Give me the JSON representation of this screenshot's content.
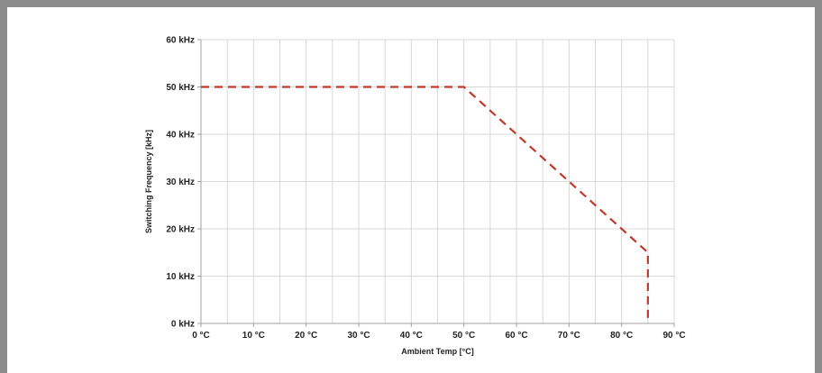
{
  "chart_data": {
    "type": "line",
    "title": "",
    "xlabel": "Ambient Temp [°C]",
    "ylabel": "Switching Frequency [kHz]",
    "xlim": [
      0,
      90
    ],
    "ylim": [
      0,
      60
    ],
    "x_ticks": [
      0,
      10,
      20,
      30,
      40,
      50,
      60,
      70,
      80,
      90
    ],
    "x_tick_labels": [
      "0 °C",
      "10 °C",
      "20 °C",
      "30 °C",
      "40 °C",
      "50 °C",
      "60 °C",
      "70 °C",
      "80 °C",
      "90 °C"
    ],
    "y_ticks": [
      0,
      10,
      20,
      30,
      40,
      50,
      60
    ],
    "y_tick_labels": [
      "0 kHz",
      "10 kHz",
      "20 kHz",
      "30 kHz",
      "40 kHz",
      "50 kHz",
      "60 kHz"
    ],
    "x_minor_step": 5,
    "grid": true,
    "legend": "none",
    "series": [
      {
        "color": "#c0392b",
        "line_style": "dashed",
        "x": [
          0,
          50,
          85,
          85
        ],
        "y": [
          50,
          50,
          15,
          0
        ]
      }
    ]
  }
}
